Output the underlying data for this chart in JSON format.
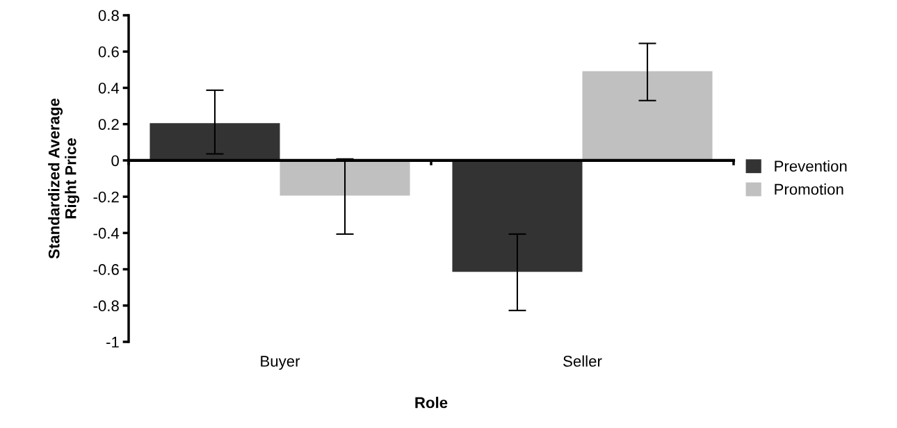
{
  "chart_data": {
    "type": "bar",
    "xlabel": "Role",
    "ylabel": "Standardized Average\nRight Price",
    "categories": [
      "Buyer",
      "Seller"
    ],
    "series": [
      {
        "name": "Prevention",
        "color": "#333333",
        "values": [
          0.205,
          -0.614
        ],
        "errors": [
          [
            0.036,
            0.387
          ],
          [
            -0.827,
            -0.406
          ]
        ]
      },
      {
        "name": "Promotion",
        "color": "#c0c0c0",
        "values": [
          -0.194,
          0.492
        ],
        "errors": [
          [
            -0.406,
            0.008
          ],
          [
            0.33,
            0.645
          ]
        ]
      }
    ],
    "ylim": [
      -1,
      0.8
    ],
    "yticks": [
      -1,
      -0.8,
      -0.6,
      -0.4,
      -0.2,
      0,
      0.2,
      0.4,
      0.6,
      0.8
    ],
    "legend": "right"
  }
}
